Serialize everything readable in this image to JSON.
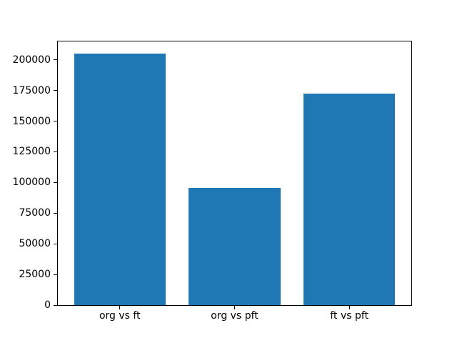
{
  "figure": {
    "background_color": "#ffffff",
    "spine_color": "#000000",
    "text_color": "#000000"
  },
  "chart_data": {
    "type": "bar",
    "title": "",
    "xlabel": "",
    "ylabel": "",
    "categories": [
      "org vs ft",
      "org vs pft",
      "ft vs pft"
    ],
    "values": [
      205000,
      95500,
      172500
    ],
    "bar_color": "#1f77b4",
    "bar_width_units": 0.8,
    "xlim": [
      -0.54,
      2.54
    ],
    "ylim": [
      0,
      215000
    ],
    "yticks": [
      0,
      25000,
      50000,
      75000,
      100000,
      125000,
      150000,
      175000,
      200000
    ],
    "grid": false,
    "legend": null
  }
}
